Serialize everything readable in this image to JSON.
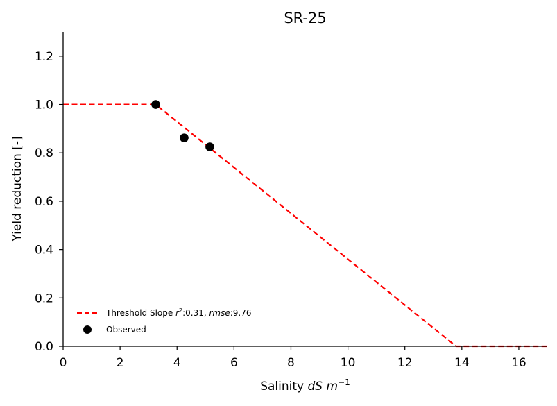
{
  "chart_data": {
    "type": "scatter",
    "title": "SR-25",
    "xlabel": {
      "prefix": "Salinity ",
      "italic": "dS m",
      "sup": "−1"
    },
    "ylabel": "Yield reduction [-]",
    "xlim": [
      0,
      17
    ],
    "ylim": [
      0,
      1.3
    ],
    "xticks": [
      0,
      2,
      4,
      6,
      8,
      10,
      12,
      14,
      16
    ],
    "yticks": [
      0.0,
      0.2,
      0.4,
      0.6,
      0.8,
      1.0,
      1.2
    ],
    "ytick_labels": [
      "0.0",
      "0.2",
      "0.4",
      "0.6",
      "0.8",
      "1.0",
      "1.2"
    ],
    "grid": false,
    "legend_position": "bottom-left",
    "series": [
      {
        "name": "Threshold Slope",
        "kind": "line",
        "style": "dashed",
        "color": "#ff0000",
        "x": [
          0,
          3.25,
          13.8,
          17
        ],
        "y": [
          1.0,
          1.0,
          0.0,
          0.0
        ]
      },
      {
        "name": "Observed",
        "kind": "scatter",
        "color": "#000000",
        "x": [
          3.25,
          4.25,
          5.15
        ],
        "y": [
          1.0,
          0.862,
          0.825
        ]
      }
    ],
    "legend_entries": [
      {
        "label": "Threshold Slope ",
        "r2_symbol": "r",
        "r2_sup": "2",
        "r2_value": ":0.31, ",
        "rmse_symbol": "rmse",
        "rmse_value": ":9.76"
      },
      {
        "label": "Observed"
      }
    ]
  }
}
